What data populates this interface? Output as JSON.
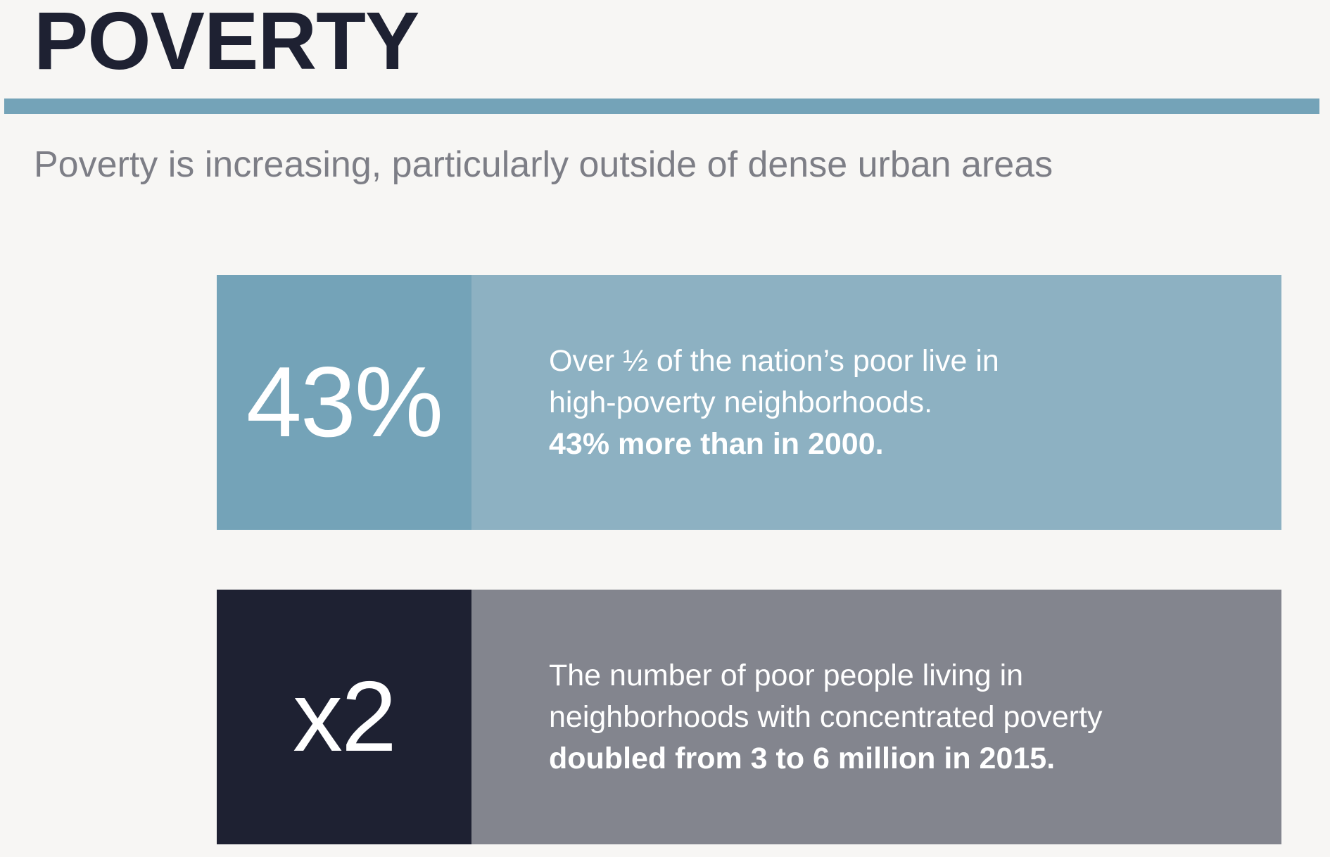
{
  "header": {
    "title": "POVERTY",
    "subtitle": "Poverty is increasing, particularly outside of dense urban areas"
  },
  "cards": [
    {
      "value": "43%",
      "line1": "Over ½ of the nation’s poor live in",
      "line2": "high-poverty neighborhoods.",
      "line3_bold": "43% more than in 2000."
    },
    {
      "value": "x2",
      "line1": "The number of poor people living in",
      "line2": "neighborhoods with concentrated poverty",
      "line3_bold": "doubled from 3 to 6 million in 2015."
    }
  ],
  "colors": {
    "background": "#f7f6f4",
    "title": "#1e2132",
    "rule": "#74a3b8",
    "subtitle": "#7d7e86",
    "card1_value_bg": "#74a3b8",
    "card1_text_bg": "#8db1c2",
    "card2_value_bg": "#1e2132",
    "card2_text_bg": "#83858e"
  }
}
